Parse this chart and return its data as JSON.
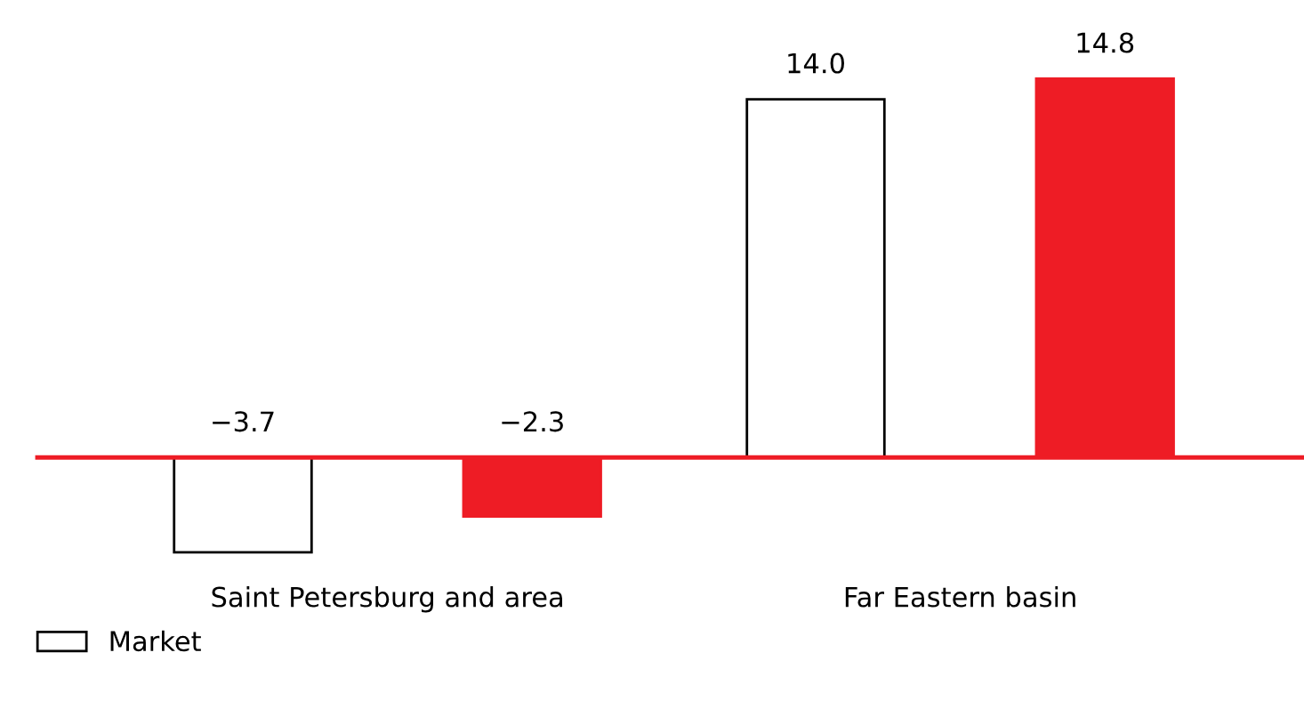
{
  "chart_data": {
    "type": "bar",
    "categories": [
      "Saint Petersburg and area",
      "Far Eastern basin"
    ],
    "series": [
      {
        "name": "Market",
        "color": "#ffffff",
        "values": [
          -3.7,
          14.0
        ],
        "value_labels": [
          "−3.7",
          "14.0"
        ]
      },
      {
        "color": "#ee1c25",
        "values": [
          -2.3,
          14.8
        ],
        "value_labels": [
          "−2.3",
          "14.8"
        ]
      }
    ],
    "legend": "bottom left",
    "grid": false,
    "ref_lines": [
      {
        "axis": "y",
        "value": 0,
        "color": "#ee1c25"
      }
    ]
  }
}
